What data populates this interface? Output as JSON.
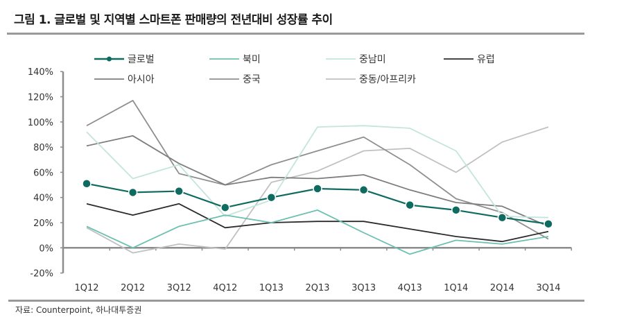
{
  "figure": {
    "title": "그림 1. 글로벌 및 지역별 스마트폰 판매량의 전년대비 성장률 추이",
    "source": "자료: Counterpoint, 하나대투증권"
  },
  "chart_data": {
    "type": "line",
    "title": "그림 1. 글로벌 및 지역별 스마트폰 판매량의 전년대비 성장률 추이",
    "xlabel": "",
    "ylabel": "",
    "categories": [
      "1Q12",
      "2Q12",
      "3Q12",
      "4Q12",
      "1Q13",
      "2Q13",
      "3Q13",
      "4Q13",
      "1Q14",
      "2Q14",
      "3Q14"
    ],
    "ylim": [
      -20,
      140
    ],
    "yticks": [
      -20,
      0,
      20,
      40,
      60,
      80,
      100,
      120,
      140
    ],
    "ytick_labels": [
      "-20%",
      "0%",
      "20%",
      "40%",
      "60%",
      "80%",
      "100%",
      "120%",
      "140%"
    ],
    "grid": false,
    "legend_position": "top",
    "series": [
      {
        "name": "글로벌",
        "color": "#0f6b5f",
        "marker": true,
        "values": [
          51,
          44,
          45,
          32,
          40,
          47,
          46,
          34,
          30,
          24,
          19
        ]
      },
      {
        "name": "북미",
        "color": "#6cc0b0",
        "marker": false,
        "values": [
          17,
          0,
          17,
          26,
          20,
          30,
          12,
          -5,
          6,
          3,
          9
        ]
      },
      {
        "name": "중남미",
        "color": "#c3e5de",
        "marker": false,
        "values": [
          92,
          55,
          66,
          25,
          38,
          96,
          97,
          95,
          77,
          25,
          24
        ]
      },
      {
        "name": "유럽",
        "color": "#2b2b2b",
        "marker": false,
        "values": [
          35,
          26,
          35,
          16,
          20,
          21,
          21,
          15,
          9,
          5,
          13
        ]
      },
      {
        "name": "아시아",
        "color": "#7d7d7d",
        "marker": false,
        "values": [
          81,
          89,
          67,
          50,
          56,
          55,
          58,
          46,
          36,
          33,
          17
        ]
      },
      {
        "name": "중국",
        "color": "#8f8f8f",
        "marker": false,
        "values": [
          97,
          117,
          59,
          50,
          66,
          77,
          88,
          66,
          39,
          28,
          7
        ]
      },
      {
        "name": "중동/아프리카",
        "color": "#c0c0c0",
        "marker": false,
        "values": [
          16,
          -4,
          3,
          -1,
          52,
          61,
          77,
          79,
          60,
          84,
          96
        ]
      }
    ]
  }
}
